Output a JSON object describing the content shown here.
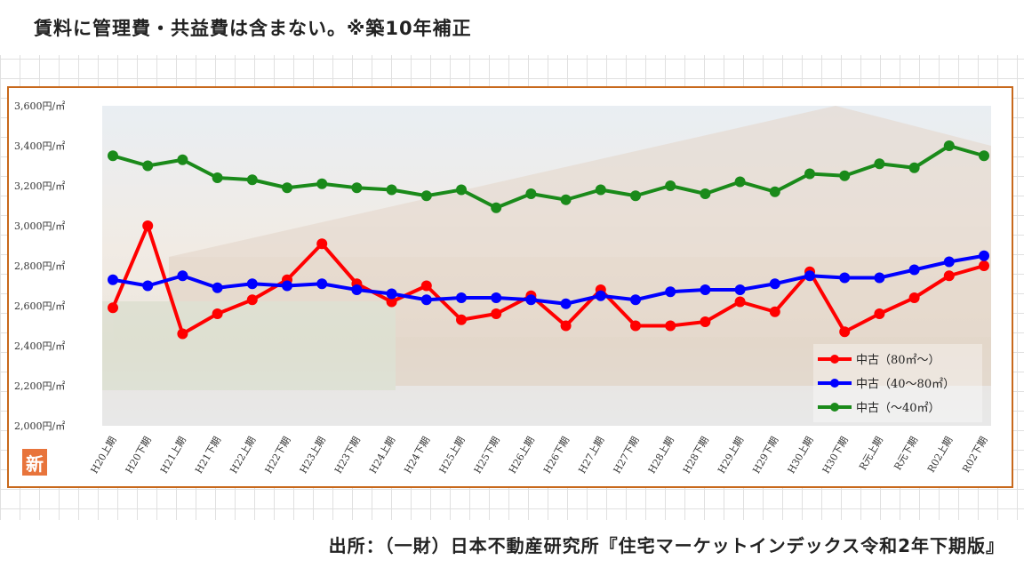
{
  "header": {
    "title": "賃料に管理費・共益費は含まない。※築10年補正"
  },
  "footer": {
    "source": "出所：（一財）日本不動産研究所『住宅マーケットインデックス令和2年下期版』"
  },
  "logo": {
    "text": "新"
  },
  "chart_data": {
    "type": "line",
    "categories": [
      "H20上期",
      "H20下期",
      "H21上期",
      "H21下期",
      "H22上期",
      "H22下期",
      "H23上期",
      "H23下期",
      "H24上期",
      "H24下期",
      "H25上期",
      "H25下期",
      "H26上期",
      "H26下期",
      "H27上期",
      "H27下期",
      "H28上期",
      "H28下期",
      "H29上期",
      "H29下期",
      "H30上期",
      "H30下期",
      "R元上期",
      "R元下期",
      "R02上期",
      "R02下期"
    ],
    "yticks": [
      "2,000円/㎡",
      "2,200円/㎡",
      "2,400円/㎡",
      "2,600円/㎡",
      "2,800円/㎡",
      "3,000円/㎡",
      "3,200円/㎡",
      "3,400円/㎡",
      "3,600円/㎡"
    ],
    "ylim": [
      2000,
      3600
    ],
    "legend_position": "bottom-right",
    "series": [
      {
        "name": "中古（80㎡～）",
        "color": "#ff0000",
        "values": [
          2590,
          3000,
          2460,
          2560,
          2630,
          2730,
          2910,
          2710,
          2620,
          2700,
          2530,
          2560,
          2650,
          2500,
          2680,
          2500,
          2500,
          2520,
          2620,
          2570,
          2770,
          2470,
          2560,
          2640,
          2750,
          2800
        ]
      },
      {
        "name": "中古（40～80㎡）",
        "color": "#0000ff",
        "values": [
          2730,
          2700,
          2750,
          2690,
          2710,
          2700,
          2710,
          2680,
          2660,
          2630,
          2640,
          2640,
          2630,
          2610,
          2650,
          2630,
          2670,
          2680,
          2680,
          2710,
          2750,
          2740,
          2740,
          2780,
          2820,
          2850
        ]
      },
      {
        "name": "中古（～40㎡）",
        "color": "#1a8a1a",
        "values": [
          3350,
          3300,
          3330,
          3240,
          3230,
          3190,
          3210,
          3190,
          3180,
          3150,
          3180,
          3090,
          3160,
          3130,
          3180,
          3150,
          3200,
          3160,
          3220,
          3170,
          3260,
          3250,
          3310,
          3290,
          3400,
          3350
        ]
      }
    ]
  }
}
